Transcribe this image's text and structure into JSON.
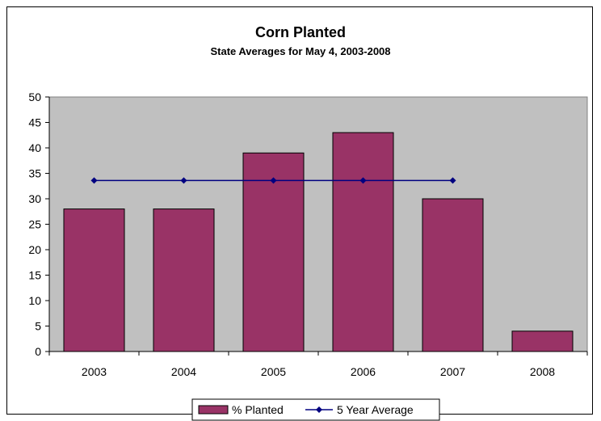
{
  "chart_data": {
    "type": "bar",
    "title": "Corn Planted",
    "subtitle": "State Averages for May 4, 2003-2008",
    "xlabel": "",
    "ylabel": "",
    "categories": [
      "2003",
      "2004",
      "2005",
      "2006",
      "2007",
      "2008"
    ],
    "ylim": [
      0,
      50
    ],
    "yticks": [
      0,
      5,
      10,
      15,
      20,
      25,
      30,
      35,
      40,
      45,
      50
    ],
    "grid": false,
    "legend_position": "bottom",
    "series": [
      {
        "name": "% Planted",
        "kind": "bar",
        "color": "#993366",
        "values": [
          28,
          28,
          39,
          43,
          30,
          4
        ]
      },
      {
        "name": "5 Year Average",
        "kind": "line",
        "color": "#000080",
        "values": [
          33.6,
          33.6,
          33.6,
          33.6,
          33.6,
          null
        ]
      }
    ],
    "colors": {
      "plot_background": "#c0c0c0",
      "bar_fill": "#993366",
      "line_color": "#000080"
    }
  }
}
